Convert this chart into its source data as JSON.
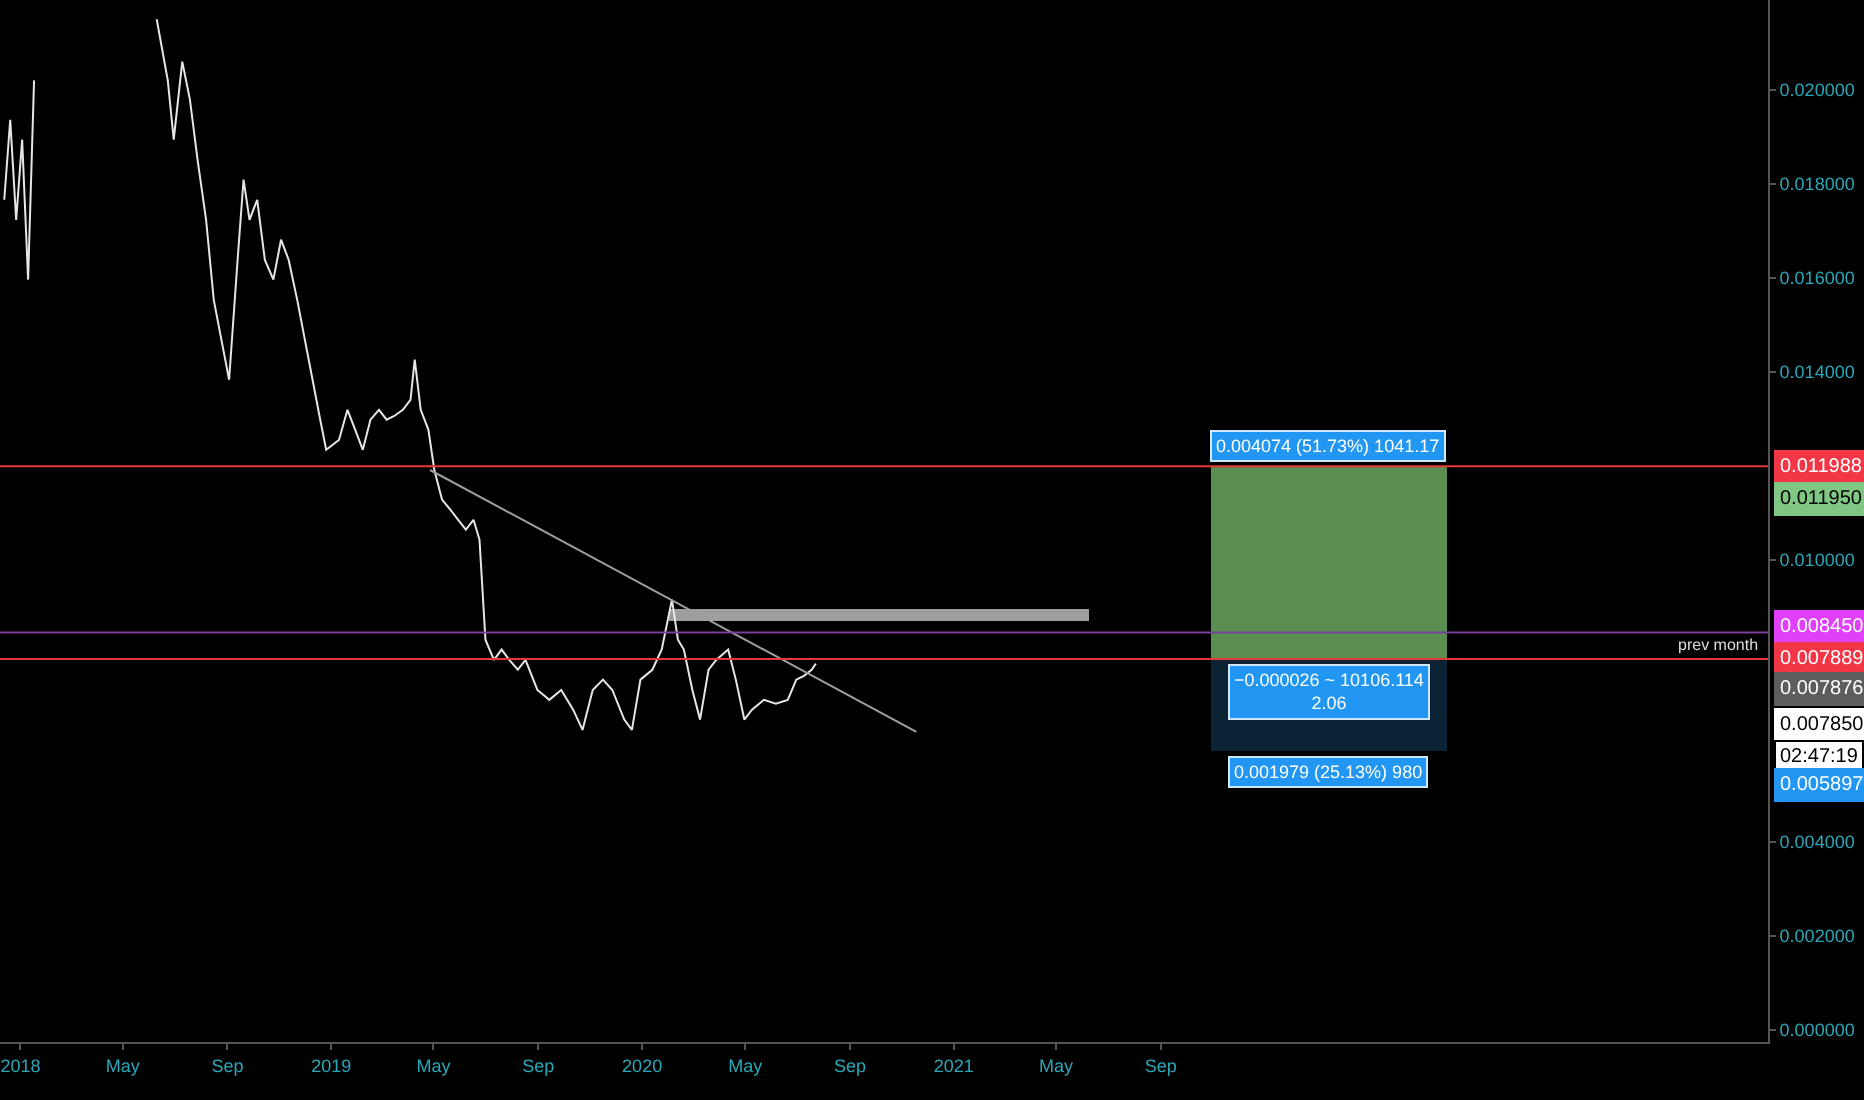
{
  "chart_data": {
    "type": "line",
    "xlim": [
      "2017-12-08",
      "2023-08-15"
    ],
    "xticks": [
      {
        "value": "2018-01-01",
        "label": "2018"
      },
      {
        "value": "2018-05-01",
        "label": "May"
      },
      {
        "value": "2018-09-01",
        "label": "Sep"
      },
      {
        "value": "2019-01-01",
        "label": "2019"
      },
      {
        "value": "2019-05-01",
        "label": "May"
      },
      {
        "value": "2019-09-01",
        "label": "Sep"
      },
      {
        "value": "2020-01-01",
        "label": "2020"
      },
      {
        "value": "2020-05-01",
        "label": "May"
      },
      {
        "value": "2020-09-01",
        "label": "Sep"
      },
      {
        "value": "2021-01-01",
        "label": "2021"
      },
      {
        "value": "2021-05-01",
        "label": "May"
      },
      {
        "value": "2021-09-01",
        "label": "Sep"
      }
    ],
    "ylim": [
      -0.00026,
      0.02191
    ],
    "yticks": [
      {
        "value": 0,
        "label": "0.000000"
      },
      {
        "value": 0.002,
        "label": "0.002000"
      },
      {
        "value": 0.004,
        "label": "0.004000"
      },
      {
        "value": 0.01,
        "label": "0.010000"
      },
      {
        "value": 0.014,
        "label": "0.014000"
      },
      {
        "value": 0.016,
        "label": "0.016000"
      },
      {
        "value": 0.018,
        "label": "0.018000"
      },
      {
        "value": 0.02,
        "label": "0.020000"
      }
    ],
    "series": [
      {
        "type": "bar",
        "color": "#5b8f52",
        "x": [
          "2022-03-17"
        ],
        "base": [
          0.007914
        ],
        "values": [
          0.004074
        ]
      },
      {
        "type": "bar",
        "color": "#0c2235",
        "x": [
          "2022-03-17"
        ],
        "base": [
          0.005935
        ],
        "values": [
          0.001979
        ]
      },
      {
        "type": "bar",
        "color": "#9e9e9e",
        "x": [
          "2020-10-05"
        ],
        "base": [
          0.0087
        ],
        "values": [
          0.00025
        ]
      },
      {
        "color": "#e6e6e6",
        "x": [
          "2017-12-13",
          "2017-12-20",
          "2017-12-27",
          "2018-01-03",
          "2018-01-10",
          "2018-01-17",
          "2018-02-15",
          "2018-06-10",
          "2018-06-23",
          "2018-06-30",
          "2018-07-10",
          "2018-07-19",
          "2018-07-28",
          "2018-08-07",
          "2018-08-16",
          "2018-08-25",
          "2018-09-03",
          "2018-09-13",
          "2018-09-20",
          "2018-09-27",
          "2018-10-06",
          "2018-10-15",
          "2018-10-25",
          "2018-11-03",
          "2018-11-12",
          "2018-11-22",
          "2018-12-01",
          "2018-12-10",
          "2018-12-19",
          "2018-12-26",
          "2019-01-10",
          "2019-01-20",
          "2019-01-29",
          "2019-02-07",
          "2019-02-16",
          "2019-02-26",
          "2019-03-07",
          "2019-03-16",
          "2019-03-26",
          "2019-04-04",
          "2019-04-09",
          "2019-04-16",
          "2019-04-25",
          "2019-05-02",
          "2019-05-11",
          "2019-05-21",
          "2019-05-30",
          "2019-06-08",
          "2019-06-17",
          "2019-06-24",
          "2019-07-01",
          "2019-07-11",
          "2019-07-20",
          "2019-07-29",
          "2019-08-08",
          "2019-08-17",
          "2019-08-31",
          "2019-09-14",
          "2019-09-28",
          "2019-10-12",
          "2019-10-23",
          "2019-11-04",
          "2019-11-16",
          "2019-11-27",
          "2019-12-11",
          "2019-12-20",
          "2019-12-30",
          "2020-01-13",
          "2020-01-24",
          "2020-02-05",
          "2020-02-12",
          "2020-02-19",
          "2020-02-29",
          "2020-03-09",
          "2020-03-19",
          "2020-03-28",
          "2020-04-11",
          "2020-04-20",
          "2020-04-30",
          "2020-05-09",
          "2020-05-23",
          "2020-06-06",
          "2020-06-20",
          "2020-06-30",
          "2020-07-09",
          "2020-07-18",
          "2020-07-23"
        ],
        "values": [
          0.01766,
          0.01936,
          0.01723,
          0.01894,
          0.01596,
          0.0202,
          null,
          0.0215,
          0.0202,
          0.01894,
          0.0206,
          0.01979,
          0.01851,
          0.01723,
          0.01553,
          0.01468,
          0.01383,
          0.01638,
          0.01809,
          0.01723,
          0.01766,
          0.01638,
          0.01596,
          0.01681,
          0.01638,
          0.01553,
          0.01468,
          0.01383,
          0.01298,
          0.01234,
          0.01255,
          0.01319,
          0.01277,
          0.01234,
          0.01298,
          0.01319,
          0.01298,
          0.01306,
          0.01319,
          0.0134,
          0.01426,
          0.01319,
          0.01277,
          0.01191,
          0.01128,
          0.01106,
          0.01085,
          0.01064,
          0.01085,
          0.01043,
          0.0083,
          0.00787,
          0.00809,
          0.00787,
          0.00766,
          0.00787,
          0.00723,
          0.00702,
          0.00723,
          0.00681,
          0.00638,
          0.00723,
          0.00745,
          0.00723,
          0.0066,
          0.00638,
          0.00745,
          0.00766,
          0.00809,
          0.00915,
          0.0083,
          0.00809,
          0.00723,
          0.0066,
          0.00766,
          0.00787,
          0.00809,
          0.00745,
          0.0066,
          0.00681,
          0.00702,
          0.00694,
          0.00702,
          0.00745,
          0.00753,
          0.00766,
          0.00779
        ]
      },
      {
        "color": "#9e9e9e",
        "x": [
          "2019-04-27",
          "2020-11-18"
        ],
        "values": [
          0.01191,
          0.00634
        ]
      }
    ],
    "annotations": [
      {
        "text": "0.004074 (51.73%) 1041.17",
        "x": "2022-03-17",
        "y": 0.011988
      },
      {
        "text": "−0.000026 ~ 10106.114\n2.06",
        "x": "2022-03-17",
        "y": 0.007914
      },
      {
        "text": "0.001979 (25.13%) 980",
        "x": "2022-03-17",
        "y": 0.005935
      },
      "0.011988",
      "0.011950",
      "0.008450",
      "0.007889",
      "0.007876",
      "0.007850",
      "02:47:19",
      "0.005897"
    ],
    "ref_lines": [
      {
        "axis": "y",
        "value": 0.011988,
        "color": "#e53935"
      },
      {
        "axis": "y",
        "value": 0.00845,
        "color": "#7b3fa0"
      },
      {
        "axis": "y",
        "value": 0.007889,
        "label": "prev month",
        "color": "#e53935"
      }
    ],
    "grid": false
  }
}
